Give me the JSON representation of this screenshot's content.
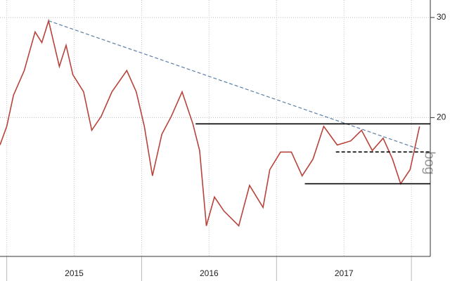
{
  "chart_data": {
    "type": "line",
    "x": [
      2014.95,
      2015.0,
      2015.05,
      2015.13,
      2015.21,
      2015.26,
      2015.31,
      2015.39,
      2015.44,
      2015.49,
      2015.57,
      2015.63,
      2015.7,
      2015.78,
      2015.89,
      2015.96,
      2016.02,
      2016.08,
      2016.15,
      2016.22,
      2016.3,
      2016.38,
      2016.43,
      2016.48,
      2016.54,
      2016.61,
      2016.72,
      2016.8,
      2016.9,
      2016.95,
      2017.03,
      2017.11,
      2017.19,
      2017.27,
      2017.35,
      2017.45,
      2017.55,
      2017.63,
      2017.71,
      2017.79,
      2017.86,
      2017.92,
      2017.99,
      2018.06
    ],
    "series": [
      {
        "color": "#b8433b",
        "values": [
          17.9,
          19.3,
          21.9,
          24.2,
          28.3,
          27.1,
          29.6,
          24.6,
          26.8,
          23.8,
          22.2,
          19.0,
          20.1,
          22.2,
          24.2,
          22.2,
          19.3,
          15.8,
          18.7,
          20.1,
          22.2,
          19.5,
          17.5,
          12.9,
          14.5,
          13.7,
          12.9,
          15.2,
          13.9,
          16.2,
          17.4,
          17.4,
          15.8,
          16.9,
          19.3,
          17.9,
          18.2,
          19.0,
          17.5,
          18.4,
          16.9,
          15.3,
          16.2,
          19.3
        ]
      }
    ],
    "xlim": [
      2014.95,
      2018.14
    ],
    "xticks": [
      {
        "value": 2015.5,
        "label": "2015"
      },
      {
        "value": 2016.5,
        "label": "2016"
      },
      {
        "value": 2017.5,
        "label": "2017"
      }
    ],
    "year_separators": [
      2015,
      2016,
      2017,
      2018
    ],
    "ylim": [
      11.4,
      32.2
    ],
    "yticks": [
      20,
      30
    ],
    "log_scale": true,
    "grid": true,
    "lines": [
      {
        "x": [
          2015.31,
          2018.06
        ],
        "y": [
          29.6,
          17.6
        ],
        "style": "dashed",
        "color": "#5b7fa6"
      },
      {
        "x": [
          2016.4,
          2018.14
        ],
        "y": [
          19.5,
          19.5
        ],
        "style": "solid",
        "color": "#000000"
      },
      {
        "x": [
          2017.44,
          2018.14
        ],
        "y": [
          17.4,
          17.4
        ],
        "style": "dashed",
        "color": "#000000"
      },
      {
        "x": [
          2017.21,
          2018.14
        ],
        "y": [
          15.3,
          15.3
        ],
        "style": "solid",
        "color": "#000000"
      }
    ],
    "watermark": "bog"
  }
}
